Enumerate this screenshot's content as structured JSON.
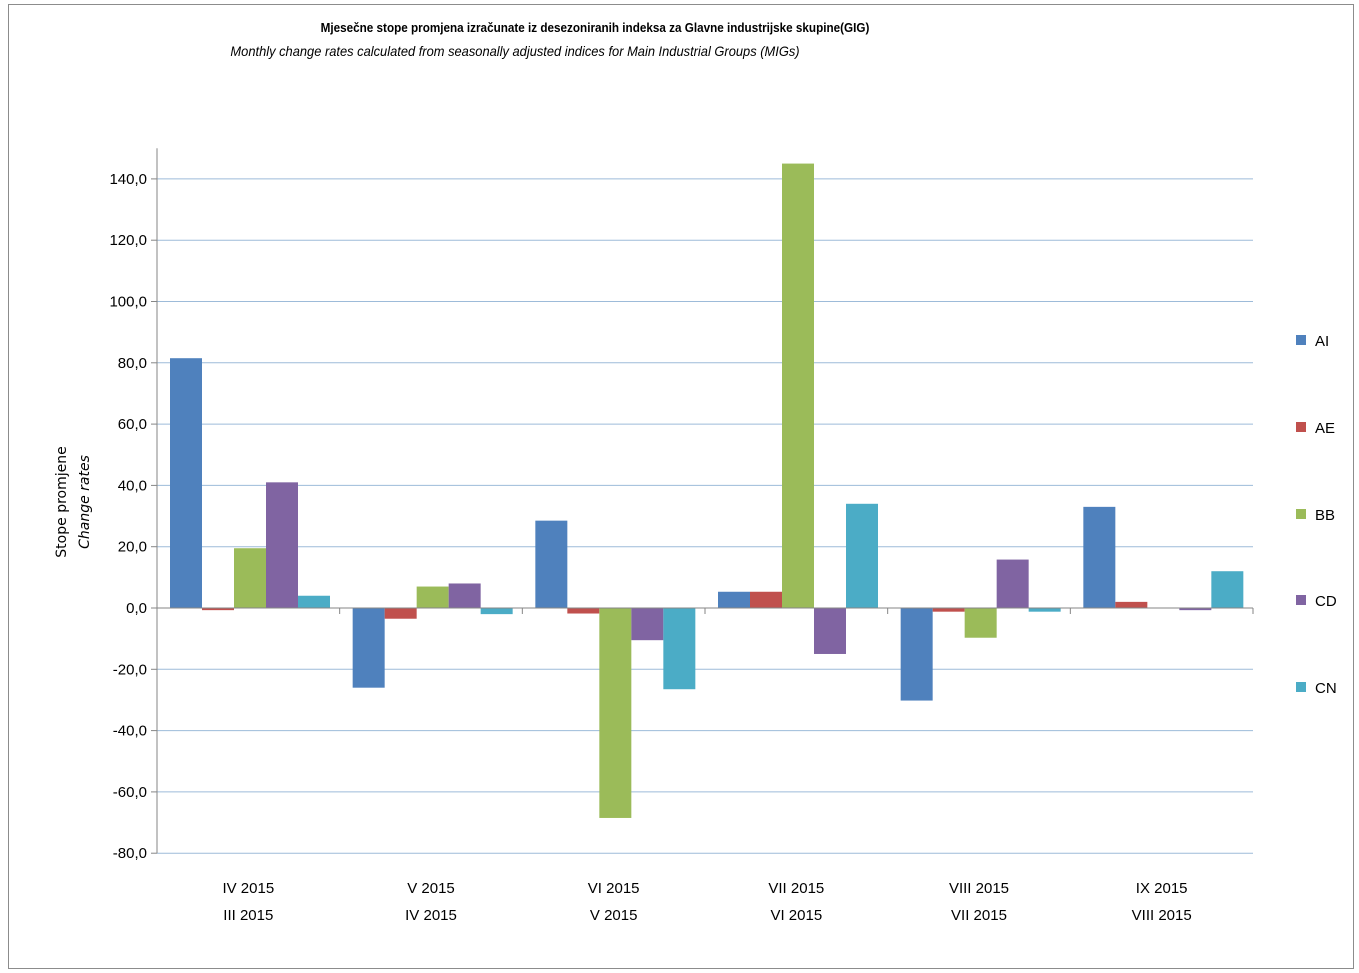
{
  "chart_data": {
    "type": "bar",
    "title": "Mjesečne stope promjena izračunate iz desezoniranih indeksa za Glavne industrijske skupine(GIG)",
    "subtitle": "Monthly change rates calculated from seasonally adjusted indices for Main Industrial Groups (MIGs)",
    "ylabel": "Stope promjene",
    "ylabel_en": "Change rates",
    "xlabel": "",
    "ylim": [
      -80,
      150
    ],
    "yticks": [
      -80,
      -60,
      -40,
      -20,
      0,
      20,
      40,
      60,
      80,
      100,
      120,
      140
    ],
    "ytick_labels": [
      "-80,0",
      "-60,0",
      "-40,0",
      "-20,0",
      "0,0",
      "20,0",
      "40,0",
      "60,0",
      "80,0",
      "100,0",
      "120,0",
      "140,0"
    ],
    "grid": true,
    "legend_position": "right",
    "categories": [
      [
        "IV 2015",
        "III 2015"
      ],
      [
        "V 2015",
        "IV 2015"
      ],
      [
        "VI 2015",
        "V 2015"
      ],
      [
        "VII 2015",
        "VI 2015"
      ],
      [
        "VIII 2015",
        "VII 2015"
      ],
      [
        "IX 2015",
        "VIII 2015"
      ]
    ],
    "series": [
      {
        "name": "AI",
        "color": "#4f81bd",
        "values": [
          81.5,
          -26.0,
          28.5,
          5.3,
          -30.2,
          33.0
        ]
      },
      {
        "name": "AE",
        "color": "#c0504d",
        "values": [
          -0.7,
          -3.5,
          -1.8,
          5.3,
          -1.2,
          2.0
        ]
      },
      {
        "name": "BB",
        "color": "#9bbb59",
        "values": [
          19.5,
          7.0,
          -68.5,
          145.0,
          -9.7,
          0.0
        ]
      },
      {
        "name": "CD",
        "color": "#8064a2",
        "values": [
          41.0,
          8.0,
          -10.5,
          -15.0,
          15.8,
          -0.7
        ]
      },
      {
        "name": "CN",
        "color": "#4bacc6",
        "values": [
          4.0,
          -2.0,
          -26.5,
          34.0,
          -1.2,
          12.0
        ]
      }
    ]
  }
}
